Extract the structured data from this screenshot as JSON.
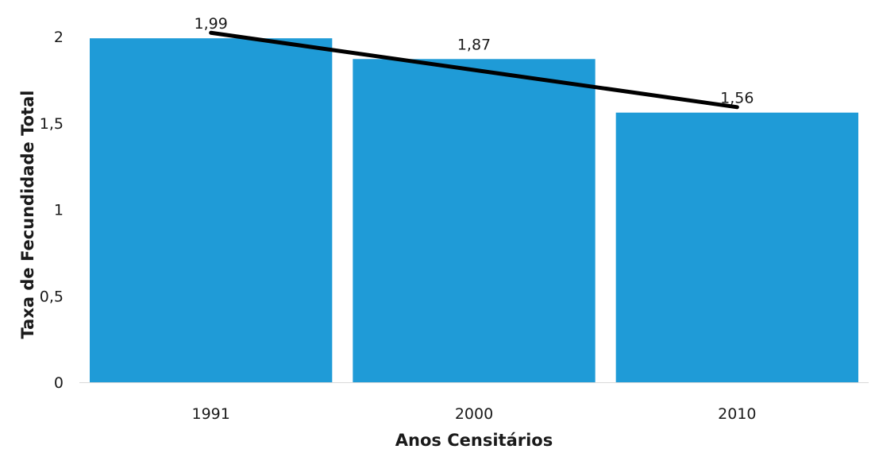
{
  "chart_data": {
    "type": "bar",
    "categories": [
      "1991",
      "2000",
      "2010"
    ],
    "values": [
      1.99,
      1.87,
      1.56
    ],
    "data_labels": [
      "1,99",
      "1,87",
      "1,56"
    ],
    "trendline": {
      "type": "linear",
      "color": "#000000"
    },
    "xlabel": "Anos Censitários",
    "ylabel": "Taxa de Fecundidade Total",
    "ylim": [
      0,
      2
    ],
    "yticks": [
      0,
      0.5,
      1,
      1.5,
      2
    ],
    "ytick_labels": [
      "0",
      "0,5",
      "1",
      "1,5",
      "2"
    ],
    "grid": false,
    "legend": "none",
    "colors": {
      "bar": "#1f9bd7",
      "trendline": "#000000",
      "axis": "#d9d9d9"
    }
  }
}
